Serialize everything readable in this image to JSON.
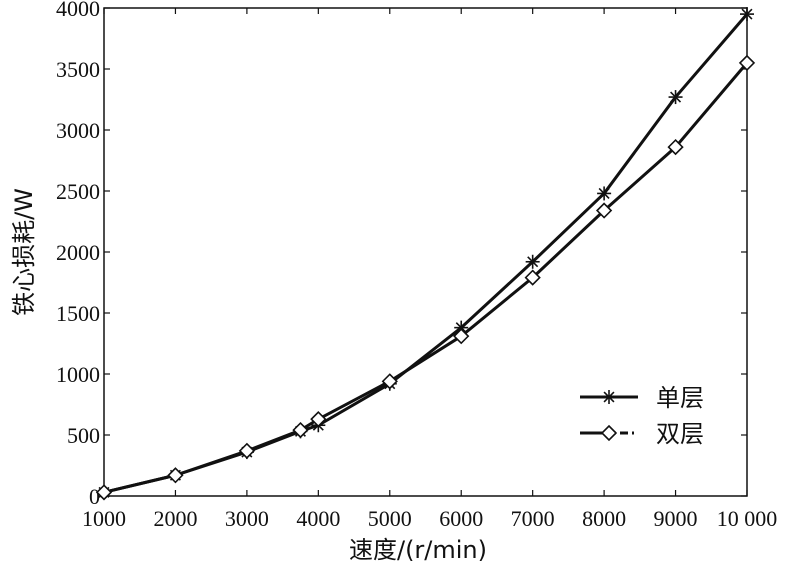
{
  "chart_data": {
    "type": "line",
    "xlabel": "速度/(r/min)",
    "ylabel": "铁心损耗/W",
    "xlim": [
      1000,
      10000
    ],
    "ylim": [
      0,
      4000
    ],
    "x_ticks": [
      1000,
      2000,
      3000,
      4000,
      5000,
      6000,
      7000,
      8000,
      9000,
      10000
    ],
    "x_tick_labels": [
      "1000",
      "2000",
      "3000",
      "4000",
      "5000",
      "6000",
      "7000",
      "8000",
      "9000",
      "10 000"
    ],
    "y_ticks": [
      0,
      500,
      1000,
      1500,
      2000,
      2500,
      3000,
      3500,
      4000
    ],
    "y_tick_labels": [
      "0",
      "500",
      "1000",
      "1500",
      "2000",
      "2500",
      "3000",
      "3500",
      "4000"
    ],
    "grid": false,
    "legend_position": "bottom-right",
    "series": [
      {
        "name": "单层",
        "marker": "asterisk",
        "line_style": "solid",
        "color": "#111111",
        "x": [
          1000,
          2000,
          3000,
          3750,
          4000,
          5000,
          6000,
          7000,
          8000,
          9000,
          10000
        ],
        "y": [
          30,
          170,
          360,
          530,
          580,
          920,
          1380,
          1920,
          2480,
          3270,
          3950
        ]
      },
      {
        "name": "双层",
        "marker": "diamond",
        "line_style": "solid",
        "color": "#111111",
        "x": [
          1000,
          2000,
          3000,
          3750,
          4000,
          5000,
          6000,
          7000,
          8000,
          9000,
          10000
        ],
        "y": [
          30,
          170,
          370,
          540,
          630,
          940,
          1310,
          1790,
          2340,
          2860,
          3550
        ]
      }
    ]
  }
}
